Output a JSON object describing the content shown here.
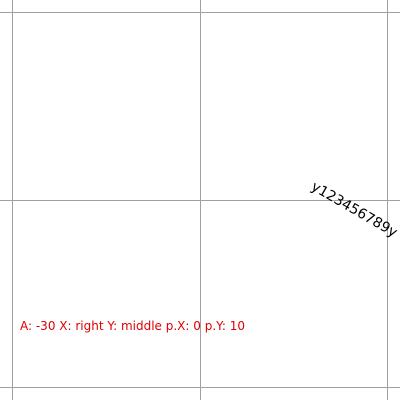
{
  "sample_text": "y123456789y",
  "settings_readout": "A: -30 X: right Y: middle p.X: 0 p.Y: 10",
  "colors": {
    "background": "#ffffff",
    "grid_line": "#a0a0a0",
    "sample_text": "#000000",
    "readout": "#e00000"
  }
}
